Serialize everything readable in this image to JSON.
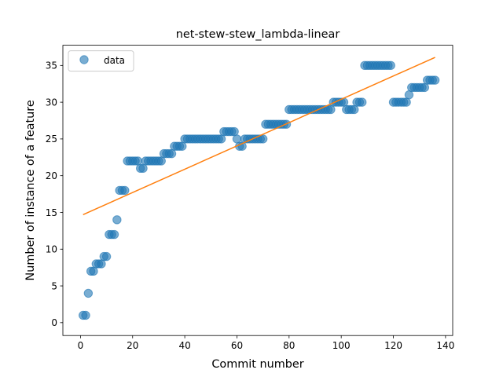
{
  "chart_data": {
    "type": "scatter",
    "title": "net-stew-stew_lambda-linear",
    "xlabel": "Commit number",
    "ylabel": "Number of instance of a feature",
    "xlim": [
      -6.75,
      142.75
    ],
    "ylim": [
      -1.75,
      37.75
    ],
    "xticks": [
      0,
      20,
      40,
      60,
      80,
      100,
      120,
      140
    ],
    "yticks": [
      0,
      5,
      10,
      15,
      20,
      25,
      30,
      35
    ],
    "grid": false,
    "legend_position": "upper left",
    "series": [
      {
        "name": "data",
        "kind": "scatter",
        "color": "#1f77b4",
        "x": [
          1,
          2,
          3,
          4,
          5,
          6,
          7,
          8,
          9,
          10,
          11,
          12,
          13,
          14,
          15,
          16,
          17,
          18,
          19,
          20,
          21,
          22,
          23,
          24,
          25,
          26,
          27,
          28,
          29,
          30,
          31,
          32,
          33,
          34,
          35,
          36,
          37,
          38,
          39,
          40,
          41,
          42,
          43,
          44,
          45,
          46,
          47,
          48,
          49,
          50,
          51,
          52,
          53,
          54,
          55,
          56,
          57,
          58,
          59,
          60,
          61,
          62,
          63,
          64,
          65,
          66,
          67,
          68,
          69,
          70,
          71,
          72,
          73,
          74,
          75,
          76,
          77,
          78,
          79,
          80,
          81,
          82,
          83,
          84,
          85,
          86,
          87,
          88,
          89,
          90,
          91,
          92,
          93,
          94,
          95,
          96,
          97,
          98,
          99,
          100,
          101,
          102,
          103,
          104,
          105,
          106,
          107,
          108,
          109,
          110,
          111,
          112,
          113,
          114,
          115,
          116,
          117,
          118,
          119,
          120,
          121,
          122,
          123,
          124,
          125,
          126,
          127,
          128,
          129,
          130,
          131,
          132,
          133,
          134,
          135,
          136
        ],
        "y": [
          1,
          1,
          4,
          7,
          7,
          8,
          8,
          8,
          9,
          9,
          12,
          12,
          12,
          14,
          18,
          18,
          18,
          22,
          22,
          22,
          22,
          22,
          21,
          21,
          22,
          22,
          22,
          22,
          22,
          22,
          22,
          23,
          23,
          23,
          23,
          24,
          24,
          24,
          24,
          25,
          25,
          25,
          25,
          25,
          25,
          25,
          25,
          25,
          25,
          25,
          25,
          25,
          25,
          25,
          26,
          26,
          26,
          26,
          26,
          25,
          24,
          24,
          25,
          25,
          25,
          25,
          25,
          25,
          25,
          25,
          27,
          27,
          27,
          27,
          27,
          27,
          27,
          27,
          27,
          29,
          29,
          29,
          29,
          29,
          29,
          29,
          29,
          29,
          29,
          29,
          29,
          29,
          29,
          29,
          29,
          29,
          30,
          30,
          30,
          30,
          30,
          29,
          29,
          29,
          29,
          30,
          30,
          30,
          35,
          35,
          35,
          35,
          35,
          35,
          35,
          35,
          35,
          35,
          35,
          30,
          30,
          30,
          30,
          30,
          30,
          31,
          32,
          32,
          32,
          32,
          32,
          32,
          33,
          33,
          33,
          33
        ]
      },
      {
        "name": "",
        "kind": "line",
        "color": "#ff7f0e",
        "x": [
          1,
          136
        ],
        "y": [
          14.7,
          36.1
        ]
      }
    ]
  }
}
